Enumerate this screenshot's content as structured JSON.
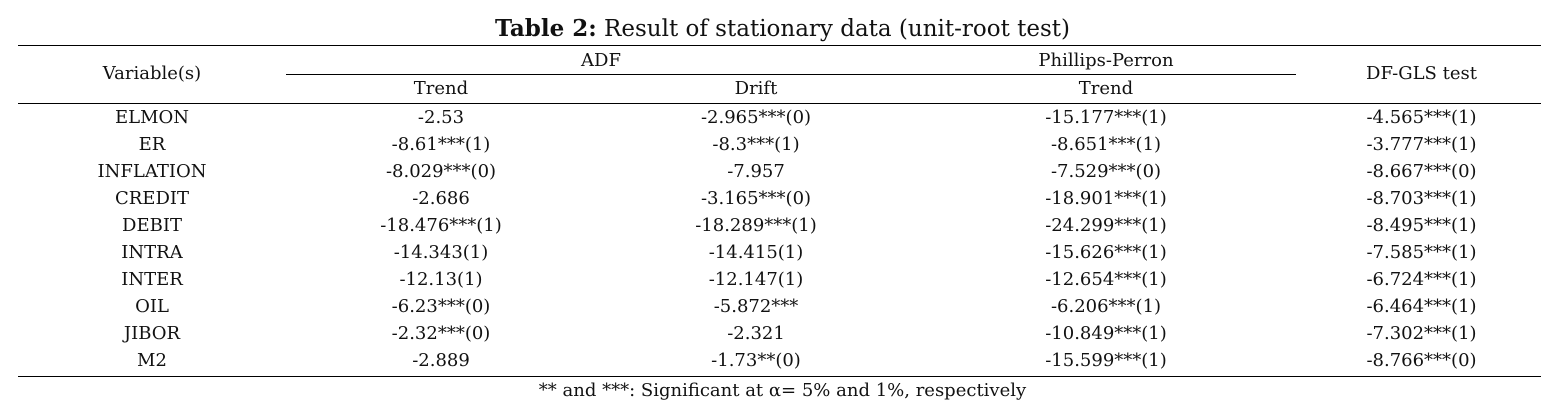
{
  "table": {
    "title_bold": "Table 2:",
    "title_rest": " Result of stationary data (unit-root test)",
    "headers": {
      "variable": "Variable(s)",
      "adf": "ADF",
      "phillips_perron": "Phillips-Perron",
      "dfgls": "DF-GLS test",
      "trend": "Trend",
      "drift": "Drift",
      "pp_trend": "Trend"
    },
    "rows": [
      {
        "variable": "ELMON",
        "adf_trend": "-2.53",
        "adf_drift": "-2.965***(0)",
        "pp_trend": "-15.177***(1)",
        "dfgls": "-4.565***(1)"
      },
      {
        "variable": "ER",
        "adf_trend": "-8.61***(1)",
        "adf_drift": "-8.3***(1)",
        "pp_trend": "-8.651***(1)",
        "dfgls": "-3.777***(1)"
      },
      {
        "variable": "INFLATION",
        "adf_trend": "-8.029***(0)",
        "adf_drift": "-7.957",
        "pp_trend": "-7.529***(0)",
        "dfgls": "-8.667***(0)"
      },
      {
        "variable": "CREDIT",
        "adf_trend": "-2.686",
        "adf_drift": "-3.165***(0)",
        "pp_trend": "-18.901***(1)",
        "dfgls": "-8.703***(1)"
      },
      {
        "variable": "DEBIT",
        "adf_trend": "-18.476***(1)",
        "adf_drift": "-18.289***(1)",
        "pp_trend": "-24.299***(1)",
        "dfgls": "-8.495***(1)"
      },
      {
        "variable": "INTRA",
        "adf_trend": "-14.343(1)",
        "adf_drift": "-14.415(1)",
        "pp_trend": "-15.626***(1)",
        "dfgls": "-7.585***(1)"
      },
      {
        "variable": "INTER",
        "adf_trend": "-12.13(1)",
        "adf_drift": "-12.147(1)",
        "pp_trend": "-12.654***(1)",
        "dfgls": "-6.724***(1)"
      },
      {
        "variable": "OIL",
        "adf_trend": "-6.23***(0)",
        "adf_drift": "-5.872***",
        "pp_trend": "-6.206***(1)",
        "dfgls": "-6.464***(1)"
      },
      {
        "variable": "JIBOR",
        "adf_trend": "-2.32***(0)",
        "adf_drift": "-2.321",
        "pp_trend": "-10.849***(1)",
        "dfgls": "-7.302***(1)"
      },
      {
        "variable": "M2",
        "adf_trend": "-2.889",
        "adf_drift": "-1.73**(0)",
        "pp_trend": "-15.599***(1)",
        "dfgls": "-8.766***(0)"
      }
    ],
    "note": "** and ***: Significant at α= 5% and 1%, respectively"
  }
}
